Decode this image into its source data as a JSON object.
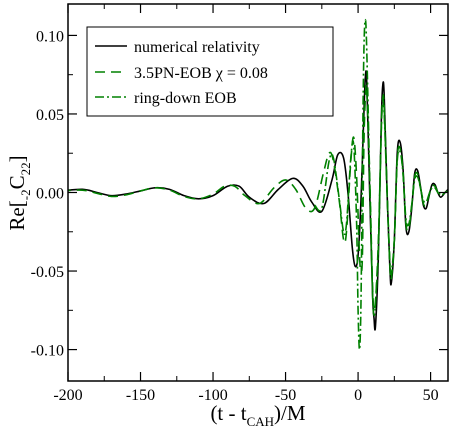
{
  "chart_data": {
    "type": "line",
    "xlabel": {
      "main": "(t - t",
      "sub": "CAH",
      "tail": ")/M"
    },
    "ylabel": {
      "main": "Re[",
      "presub": "-2",
      "letter": "C",
      "sub": "22",
      "tail": "]"
    },
    "xlim": [
      -200,
      62
    ],
    "ylim": [
      -0.12,
      0.12
    ],
    "xticks": [
      -200,
      -150,
      -100,
      -50,
      0,
      50
    ],
    "xtick_labels": [
      "-200",
      "-150",
      "-100",
      "-50",
      "0",
      "50"
    ],
    "yticks": [
      -0.1,
      -0.05,
      0.0,
      0.05,
      0.1
    ],
    "ytick_labels": [
      "-0.10",
      "-0.05",
      "0.00",
      "0.05",
      "0.10"
    ],
    "legend_position": "top-left",
    "series": [
      {
        "name": "numerical relativity",
        "color": "#000000",
        "dash": "solid",
        "points": [
          [
            -205,
            0.001
          ],
          [
            -190,
            0.002
          ],
          [
            -180,
            0.0
          ],
          [
            -170,
            -0.002
          ],
          [
            -160,
            -0.001
          ],
          [
            -150,
            0.001
          ],
          [
            -140,
            0.003
          ],
          [
            -130,
            0.002
          ],
          [
            -120,
            -0.002
          ],
          [
            -110,
            -0.004
          ],
          [
            -100,
            -0.002
          ],
          [
            -90,
            0.004
          ],
          [
            -82,
            0.004
          ],
          [
            -75,
            -0.003
          ],
          [
            -65,
            -0.007
          ],
          [
            -55,
            0.002
          ],
          [
            -45,
            0.009
          ],
          [
            -38,
            0.004
          ],
          [
            -32,
            -0.006
          ],
          [
            -25,
            -0.012
          ],
          [
            -18,
            0.008
          ],
          [
            -14,
            0.024
          ],
          [
            -10,
            0.022
          ],
          [
            -7,
            0.0
          ],
          [
            -4,
            -0.035
          ],
          [
            -2,
            -0.047
          ],
          [
            0,
            -0.04
          ],
          [
            2,
            -0.005
          ],
          [
            4,
            0.05
          ],
          [
            5,
            0.073
          ],
          [
            6,
            0.07
          ],
          [
            8,
            0.0
          ],
          [
            10,
            -0.065
          ],
          [
            11,
            -0.08
          ],
          [
            12,
            -0.085
          ],
          [
            14,
            -0.04
          ],
          [
            16,
            0.045
          ],
          [
            17,
            0.068
          ],
          [
            18,
            0.062
          ],
          [
            20,
            0.0
          ],
          [
            22,
            -0.05
          ],
          [
            23,
            -0.057
          ],
          [
            25,
            -0.03
          ],
          [
            27,
            0.025
          ],
          [
            29,
            0.032
          ],
          [
            31,
            0.015
          ],
          [
            33,
            -0.022
          ],
          [
            35,
            -0.025
          ],
          [
            37,
            -0.01
          ],
          [
            39,
            0.012
          ],
          [
            41,
            0.014
          ],
          [
            43,
            0.004
          ],
          [
            45,
            -0.008
          ],
          [
            47,
            -0.01
          ],
          [
            49,
            -0.002
          ],
          [
            51,
            0.005
          ],
          [
            53,
            0.005
          ],
          [
            55,
            0.0
          ],
          [
            57,
            -0.003
          ],
          [
            60,
            0.0
          ],
          [
            62,
            0.002
          ]
        ]
      },
      {
        "name": "3.5PN-EOB χ = 0.08",
        "color": "#008000",
        "dash": "10,6",
        "points": [
          [
            -205,
            0.001
          ],
          [
            -190,
            0.0015
          ],
          [
            -180,
            -0.0005
          ],
          [
            -170,
            -0.0025
          ],
          [
            -160,
            -0.0015
          ],
          [
            -150,
            0.001
          ],
          [
            -140,
            0.003
          ],
          [
            -130,
            0.0015
          ],
          [
            -120,
            -0.0025
          ],
          [
            -110,
            -0.004
          ],
          [
            -100,
            -0.001
          ],
          [
            -92,
            0.004
          ],
          [
            -85,
            0.004
          ],
          [
            -78,
            -0.002
          ],
          [
            -68,
            -0.007
          ],
          [
            -58,
            0.003
          ],
          [
            -50,
            0.008
          ],
          [
            -43,
            0.002
          ],
          [
            -36,
            -0.01
          ],
          [
            -30,
            -0.01
          ],
          [
            -24,
            0.012
          ],
          [
            -20,
            0.025
          ],
          [
            -17,
            0.02
          ],
          [
            -13,
            -0.005
          ],
          [
            -10,
            -0.03
          ],
          [
            -8,
            -0.025
          ],
          [
            -5,
            0.02
          ],
          [
            -3,
            0.035
          ],
          [
            -1,
            0.01
          ],
          [
            1,
            -0.04
          ],
          [
            2,
            -0.05
          ],
          [
            3,
            -0.04
          ],
          [
            4,
            0.03
          ],
          [
            5,
            0.06
          ],
          [
            6,
            0.065
          ],
          [
            8,
            0.01
          ],
          [
            10,
            -0.06
          ],
          [
            11,
            -0.074
          ],
          [
            12,
            -0.07
          ],
          [
            14,
            -0.03
          ],
          [
            16,
            0.04
          ],
          [
            17,
            0.06
          ],
          [
            18,
            0.055
          ],
          [
            20,
            0.0
          ],
          [
            22,
            -0.048
          ],
          [
            23,
            -0.054
          ],
          [
            25,
            -0.03
          ],
          [
            27,
            0.022
          ],
          [
            29,
            0.028
          ],
          [
            31,
            0.012
          ],
          [
            33,
            -0.02
          ],
          [
            35,
            -0.023
          ],
          [
            37,
            -0.008
          ],
          [
            39,
            0.01
          ],
          [
            41,
            0.012
          ],
          [
            43,
            0.003
          ],
          [
            45,
            -0.007
          ],
          [
            47,
            -0.008
          ],
          [
            49,
            -0.001
          ],
          [
            51,
            0.004
          ],
          [
            53,
            0.004
          ],
          [
            55,
            0.0
          ],
          [
            57,
            -0.002
          ],
          [
            60,
            0.0
          ],
          [
            62,
            0.001
          ]
        ]
      },
      {
        "name": "ring-down EOB",
        "color": "#008000",
        "dash": "9,3,2,3",
        "points": [
          [
            -30,
            -0.008
          ],
          [
            -25,
            -0.01
          ],
          [
            -20,
            0.02
          ],
          [
            -17,
            0.022
          ],
          [
            -13,
            -0.004
          ],
          [
            -10,
            -0.025
          ],
          [
            -8,
            -0.02
          ],
          [
            -5,
            0.022
          ],
          [
            -3,
            0.03
          ],
          [
            -1,
            -0.02
          ],
          [
            0,
            -0.075
          ],
          [
            1,
            -0.1
          ],
          [
            2,
            -0.07
          ],
          [
            3,
            0.02
          ],
          [
            4,
            0.09
          ],
          [
            5,
            0.11
          ],
          [
            6,
            0.09
          ],
          [
            8,
            0.01
          ],
          [
            10,
            -0.065
          ],
          [
            11,
            -0.078
          ],
          [
            12,
            -0.07
          ],
          [
            14,
            -0.035
          ],
          [
            16,
            0.04
          ],
          [
            17,
            0.058
          ],
          [
            18,
            0.05
          ],
          [
            20,
            0.0
          ],
          [
            22,
            -0.045
          ],
          [
            23,
            -0.05
          ],
          [
            25,
            -0.03
          ],
          [
            27,
            0.02
          ],
          [
            29,
            0.026
          ],
          [
            31,
            0.012
          ],
          [
            33,
            -0.017
          ],
          [
            35,
            -0.02
          ],
          [
            37,
            -0.008
          ],
          [
            39,
            0.008
          ],
          [
            41,
            0.01
          ],
          [
            43,
            0.003
          ],
          [
            45,
            -0.005
          ],
          [
            47,
            -0.006
          ],
          [
            49,
            -0.001
          ],
          [
            51,
            0.003
          ],
          [
            53,
            0.003
          ],
          [
            55,
            0.0
          ],
          [
            57,
            -0.001
          ],
          [
            60,
            0.0
          ],
          [
            62,
            0.0
          ]
        ]
      }
    ]
  }
}
